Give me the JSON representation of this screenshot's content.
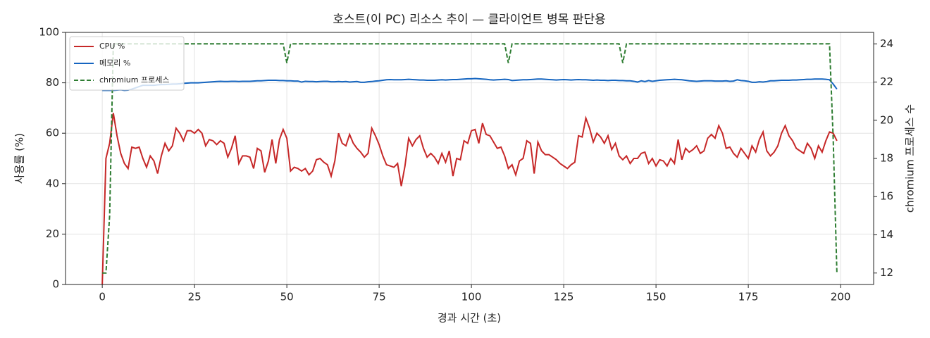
{
  "chart_data": {
    "type": "line",
    "title": "호스트(이 PC) 리소스 추이 — 클라이언트 병목 판단용",
    "xlabel": "경과 시간 (초)",
    "ylabel": "사용률 (%)",
    "y2label": "chromium 프로세스 수",
    "x": [
      0,
      1,
      2,
      3,
      4,
      5,
      6,
      7,
      8,
      9,
      10,
      11,
      12,
      13,
      14,
      15,
      16,
      17,
      18,
      19,
      20,
      21,
      22,
      23,
      24,
      25,
      26,
      27,
      28,
      29,
      30,
      31,
      32,
      33,
      34,
      35,
      36,
      37,
      38,
      39,
      40,
      41,
      42,
      43,
      44,
      45,
      46,
      47,
      48,
      49,
      50,
      51,
      52,
      53,
      54,
      55,
      56,
      57,
      58,
      59,
      60,
      61,
      62,
      63,
      64,
      65,
      66,
      67,
      68,
      69,
      70,
      71,
      72,
      73,
      74,
      75,
      76,
      77,
      78,
      79,
      80,
      81,
      82,
      83,
      84,
      85,
      86,
      87,
      88,
      89,
      90,
      91,
      92,
      93,
      94,
      95,
      96,
      97,
      98,
      99,
      100,
      101,
      102,
      103,
      104,
      105,
      106,
      107,
      108,
      109,
      110,
      111,
      112,
      113,
      114,
      115,
      116,
      117,
      118,
      119,
      120,
      121,
      122,
      123,
      124,
      125,
      126,
      127,
      128,
      129,
      130,
      131,
      132,
      133,
      134,
      135,
      136,
      137,
      138,
      139,
      140,
      141,
      142,
      143,
      144,
      145,
      146,
      147,
      148,
      149,
      150,
      151,
      152,
      153,
      154,
      155,
      156,
      157,
      158,
      159,
      160,
      161,
      162,
      163,
      164,
      165,
      166,
      167,
      168,
      169,
      170,
      171,
      172,
      173,
      174,
      175,
      176,
      177,
      178,
      179,
      180,
      181,
      182,
      183,
      184,
      185,
      186,
      187,
      188,
      189,
      190,
      191,
      192,
      193,
      194,
      195,
      196,
      197,
      198,
      199
    ],
    "series": [
      {
        "name": "CPU %",
        "color": "#c62828",
        "dash": false,
        "values": [
          0,
          50,
          56,
          68,
          59,
          52,
          48,
          46,
          54.5,
          54,
          54.5,
          50,
          46.5,
          51,
          49,
          44,
          51,
          56,
          53,
          55,
          62,
          60,
          57,
          61,
          61,
          60,
          61.5,
          60,
          55,
          57.5,
          57,
          55.5,
          57,
          56,
          50.5,
          54,
          59,
          48,
          51,
          51,
          50.5,
          46,
          54,
          53,
          44.5,
          49,
          57.5,
          48,
          57.5,
          61.5,
          58,
          45,
          46.5,
          46,
          45,
          46,
          43.5,
          45,
          49.5,
          50,
          48.5,
          47.5,
          43,
          49,
          60,
          56,
          55,
          59.5,
          56,
          54,
          52.5,
          50.5,
          52,
          62,
          59,
          55.5,
          51,
          47.5,
          47,
          46.5,
          48,
          39,
          47,
          58,
          55,
          57.5,
          59,
          54,
          50.5,
          52,
          50.5,
          48,
          52,
          48.5,
          53,
          43,
          50,
          49.5,
          57,
          56,
          61,
          61.5,
          56,
          64,
          59.5,
          59,
          56.5,
          54,
          54.5,
          51,
          46,
          47.5,
          43.5,
          49,
          50,
          57,
          56,
          44,
          56.5,
          53,
          51.5,
          51.5,
          50.5,
          49.5,
          48,
          47,
          46,
          47.5,
          48.5,
          59,
          58.5,
          66,
          62,
          56.5,
          60,
          58.5,
          56,
          59,
          53.5,
          56,
          51,
          49.5,
          51,
          48,
          50,
          50,
          52,
          52.5,
          48,
          50,
          47,
          49.5,
          49,
          47,
          50,
          48,
          57.5,
          49.5,
          54,
          52.5,
          53.5,
          55,
          52,
          53,
          58,
          59.5,
          58,
          63,
          60,
          54,
          54.5,
          52,
          50.5,
          54,
          52,
          50,
          55,
          52.5,
          57.5,
          60.5,
          53,
          51,
          52.5,
          55,
          60,
          63,
          59,
          57,
          54,
          53,
          52,
          56,
          54,
          50,
          55,
          52.5,
          57,
          60.5,
          60,
          57
        ]
      },
      {
        "name": "메모리 %",
        "color": "#1565c0",
        "dash": false,
        "values": [
          77,
          77,
          77,
          77,
          77.1,
          77.2,
          77,
          77.1,
          77.5,
          78,
          78.5,
          79,
          79,
          79,
          79,
          79.2,
          79.3,
          79.3,
          79.4,
          79.5,
          79.5,
          79.6,
          79.8,
          79.9,
          80,
          80,
          80,
          80.1,
          80.2,
          80.3,
          80.4,
          80.5,
          80.6,
          80.5,
          80.5,
          80.6,
          80.6,
          80.5,
          80.6,
          80.6,
          80.6,
          80.7,
          80.8,
          80.8,
          80.9,
          81,
          81,
          81,
          80.9,
          80.9,
          80.8,
          80.8,
          80.7,
          80.7,
          80.3,
          80.6,
          80.5,
          80.5,
          80.4,
          80.5,
          80.6,
          80.6,
          80.4,
          80.4,
          80.5,
          80.4,
          80.5,
          80.3,
          80.4,
          80.5,
          80.2,
          80.2,
          80.4,
          80.5,
          80.7,
          80.8,
          81,
          81.2,
          81.3,
          81.2,
          81.2,
          81.2,
          81.3,
          81.4,
          81.3,
          81.2,
          81.1,
          81.1,
          81,
          81,
          81,
          81.1,
          81.2,
          81.1,
          81.2,
          81.3,
          81.3,
          81.4,
          81.5,
          81.6,
          81.6,
          81.7,
          81.6,
          81.5,
          81.4,
          81.2,
          81.1,
          81.2,
          81.3,
          81.4,
          81.3,
          80.9,
          81,
          81.1,
          81.2,
          81.2,
          81.3,
          81.4,
          81.5,
          81.5,
          81.4,
          81.3,
          81.2,
          81.1,
          81.2,
          81.3,
          81.2,
          81.1,
          81.2,
          81.3,
          81.2,
          81.2,
          81.1,
          81,
          81.1,
          81,
          81,
          80.9,
          81,
          81,
          80.9,
          80.9,
          80.8,
          80.8,
          80.6,
          80.3,
          80.8,
          80.5,
          80.9,
          80.6,
          80.8,
          81,
          81.1,
          81.2,
          81.3,
          81.4,
          81.3,
          81.2,
          81,
          80.8,
          80.7,
          80.6,
          80.7,
          80.8,
          80.8,
          80.8,
          80.7,
          80.7,
          80.7,
          80.8,
          80.6,
          80.7,
          81.2,
          80.9,
          80.8,
          80.6,
          80.2,
          80.2,
          80.4,
          80.3,
          80.5,
          80.8,
          80.8,
          80.9,
          81,
          81,
          81,
          81.1,
          81.1,
          81.2,
          81.3,
          81.4,
          81.4,
          81.5,
          81.5,
          81.5,
          81.4,
          81.2,
          79.5,
          77.5
        ]
      },
      {
        "name": "chromium 프로세스",
        "color": "#2e7d32",
        "dash": true,
        "axis": "y2",
        "values": [
          12,
          12,
          15,
          24,
          24,
          24,
          24,
          24,
          24,
          24,
          24,
          24,
          24,
          24,
          24,
          24,
          24,
          24,
          24,
          24,
          24,
          24,
          24,
          24,
          24,
          24,
          24,
          24,
          24,
          24,
          24,
          24,
          24,
          24,
          24,
          24,
          24,
          24,
          24,
          24,
          24,
          24,
          24,
          24,
          24,
          24,
          24,
          24,
          24,
          24,
          23,
          24,
          24,
          24,
          24,
          24,
          24,
          24,
          24,
          24,
          24,
          24,
          24,
          24,
          24,
          24,
          24,
          24,
          24,
          24,
          24,
          24,
          24,
          24,
          24,
          24,
          24,
          24,
          24,
          24,
          24,
          24,
          24,
          24,
          24,
          24,
          24,
          24,
          24,
          24,
          24,
          24,
          24,
          24,
          24,
          24,
          24,
          24,
          24,
          24,
          24,
          24,
          24,
          24,
          24,
          24,
          24,
          24,
          24,
          24,
          23,
          24,
          24,
          24,
          24,
          24,
          24,
          24,
          24,
          24,
          24,
          24,
          24,
          24,
          24,
          24,
          24,
          24,
          24,
          24,
          24,
          24,
          24,
          24,
          24,
          24,
          24,
          24,
          24,
          24,
          24,
          23,
          24,
          24,
          24,
          24,
          24,
          24,
          24,
          24,
          24,
          24,
          24,
          24,
          24,
          24,
          24,
          24,
          24,
          24,
          24,
          24,
          24,
          24,
          24,
          24,
          24,
          24,
          24,
          24,
          24,
          24,
          24,
          24,
          24,
          24,
          24,
          24,
          24,
          24,
          24,
          24,
          24,
          24,
          24,
          24,
          24,
          24,
          24,
          24,
          24,
          24,
          24,
          24,
          24,
          24,
          24,
          24,
          19,
          12
        ]
      }
    ],
    "xlim": [
      -9.95,
      208.95
    ],
    "xticks": [
      0,
      25,
      50,
      75,
      100,
      125,
      150,
      175,
      200
    ],
    "ylim": [
      0,
      100
    ],
    "yticks": [
      0,
      20,
      40,
      60,
      80,
      100
    ],
    "y2lim": [
      11.4,
      24.6
    ],
    "y2ticks": [
      12,
      14,
      16,
      18,
      20,
      22,
      24
    ],
    "grid": true,
    "legend": "upper left"
  }
}
